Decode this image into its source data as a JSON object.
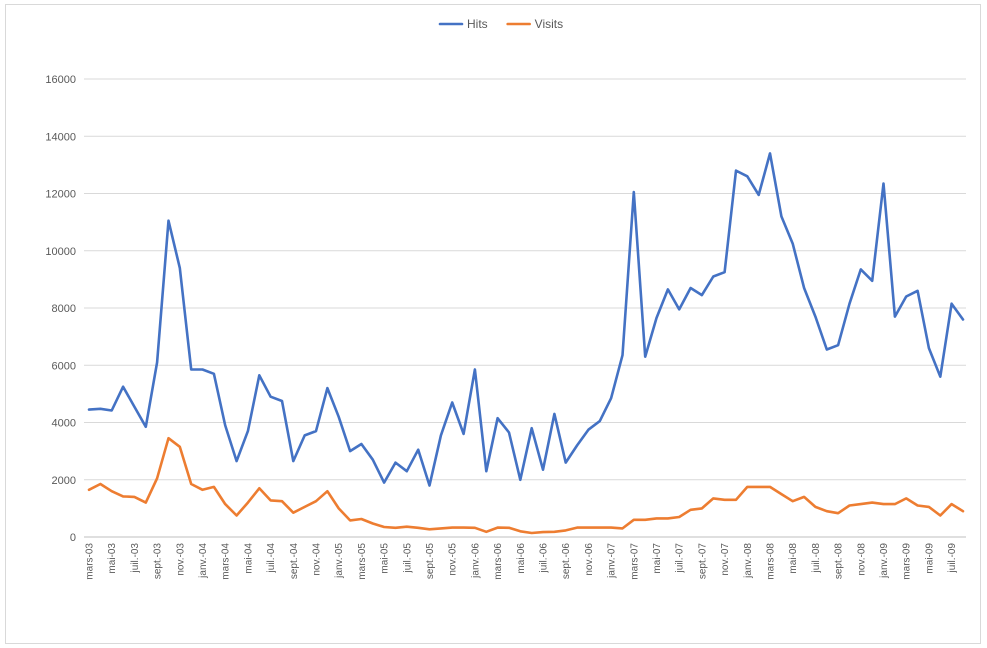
{
  "chart_data": {
    "type": "line",
    "title": "",
    "xlabel": "",
    "ylabel": "",
    "ylim": [
      0,
      16000
    ],
    "y_ticks": [
      0,
      2000,
      4000,
      6000,
      8000,
      10000,
      12000,
      14000,
      16000
    ],
    "grid": "horizontal",
    "legend": "top-center",
    "x": [
      "mars-03",
      "avr.-03",
      "mai-03",
      "juin-03",
      "juil.-03",
      "août-03",
      "sept.-03",
      "oct.-03",
      "nov.-03",
      "déc.-03",
      "janv.-04",
      "févr.-04",
      "mars-04",
      "avr.-04",
      "mai-04",
      "juin-04",
      "juil.-04",
      "août-04",
      "sept.-04",
      "oct.-04",
      "nov.-04",
      "déc.-04",
      "janv.-05",
      "févr.-05",
      "mars-05",
      "avr.-05",
      "mai-05",
      "juin-05",
      "juil.-05",
      "août-05",
      "sept.-05",
      "oct.-05",
      "nov.-05",
      "déc.-05",
      "janv.-06",
      "févr.-06",
      "mars-06",
      "avr.-06",
      "mai-06",
      "juin-06",
      "juil.-06",
      "août-06",
      "sept.-06",
      "oct.-06",
      "nov.-06",
      "déc.-06",
      "janv.-07",
      "févr.-07",
      "mars-07",
      "avr.-07",
      "mai-07",
      "juin-07",
      "juil.-07",
      "août-07",
      "sept.-07",
      "oct.-07",
      "nov.-07",
      "déc.-07",
      "janv.-08",
      "févr.-08",
      "mars-08",
      "avr.-08",
      "mai-08",
      "juin-08",
      "juil.-08",
      "août-08",
      "sept.-08",
      "oct.-08",
      "nov.-08",
      "déc.-08",
      "janv.-09",
      "févr.-09",
      "mars-09",
      "avr.-09",
      "mai-09",
      "juin-09",
      "juil.-09",
      "août-09"
    ],
    "x_tick_labels": [
      "mars-03",
      "mai-03",
      "juil.-03",
      "sept.-03",
      "nov.-03",
      "janv.-04",
      "mars-04",
      "mai-04",
      "juil.-04",
      "sept.-04",
      "nov.-04",
      "janv.-05",
      "mars-05",
      "mai-05",
      "juil.-05",
      "sept.-05",
      "nov.-05",
      "janv.-06",
      "mars-06",
      "mai-06",
      "juil.-06",
      "sept.-06",
      "nov.-06",
      "janv.-07",
      "mars-07",
      "mai-07",
      "juil.-07",
      "sept.-07",
      "nov.-07",
      "janv.-08",
      "mars-08",
      "mai-08",
      "juil.-08",
      "sept.-08",
      "nov.-08",
      "janv.-09",
      "mars-09",
      "mai-09",
      "juil.-09"
    ],
    "series": [
      {
        "name": "Hits",
        "color": "#4472c4",
        "values": [
          4450,
          4480,
          4420,
          5250,
          4550,
          3850,
          6100,
          11050,
          9400,
          5850,
          5850,
          5700,
          3900,
          2650,
          3700,
          5650,
          4900,
          4750,
          2650,
          3550,
          3700,
          5200,
          4200,
          3000,
          3250,
          2700,
          1900,
          2600,
          2300,
          3050,
          1800,
          3550,
          4700,
          3600,
          5850,
          2300,
          4150,
          3650,
          2000,
          3800,
          2350,
          4300,
          2600,
          3200,
          3750,
          4050,
          4850,
          6350,
          12050,
          6300,
          7650,
          8650,
          7950,
          8700,
          8450,
          9100,
          9250,
          12800,
          12600,
          11950,
          13400,
          11200,
          10250,
          8700,
          7700,
          6550,
          6700,
          8150,
          9350,
          8950,
          12350,
          7700,
          8400,
          8600,
          6600,
          5600,
          8150,
          7600
        ]
      },
      {
        "name": "Visits",
        "color": "#ed7d31",
        "values": [
          1650,
          1850,
          1600,
          1420,
          1400,
          1200,
          2050,
          3450,
          3150,
          1850,
          1650,
          1750,
          1150,
          750,
          1200,
          1700,
          1280,
          1250,
          850,
          1050,
          1250,
          1600,
          1000,
          580,
          630,
          470,
          350,
          320,
          360,
          320,
          270,
          300,
          330,
          330,
          320,
          180,
          330,
          320,
          200,
          140,
          170,
          180,
          230,
          330,
          330,
          330,
          330,
          300,
          600,
          600,
          650,
          650,
          700,
          950,
          1000,
          1350,
          1300,
          1300,
          1750,
          1750,
          1750,
          1500,
          1250,
          1400,
          1050,
          900,
          830,
          1100,
          1150,
          1200,
          1150,
          1150,
          1350,
          1100,
          1050,
          750,
          1150,
          900
        ]
      }
    ]
  }
}
